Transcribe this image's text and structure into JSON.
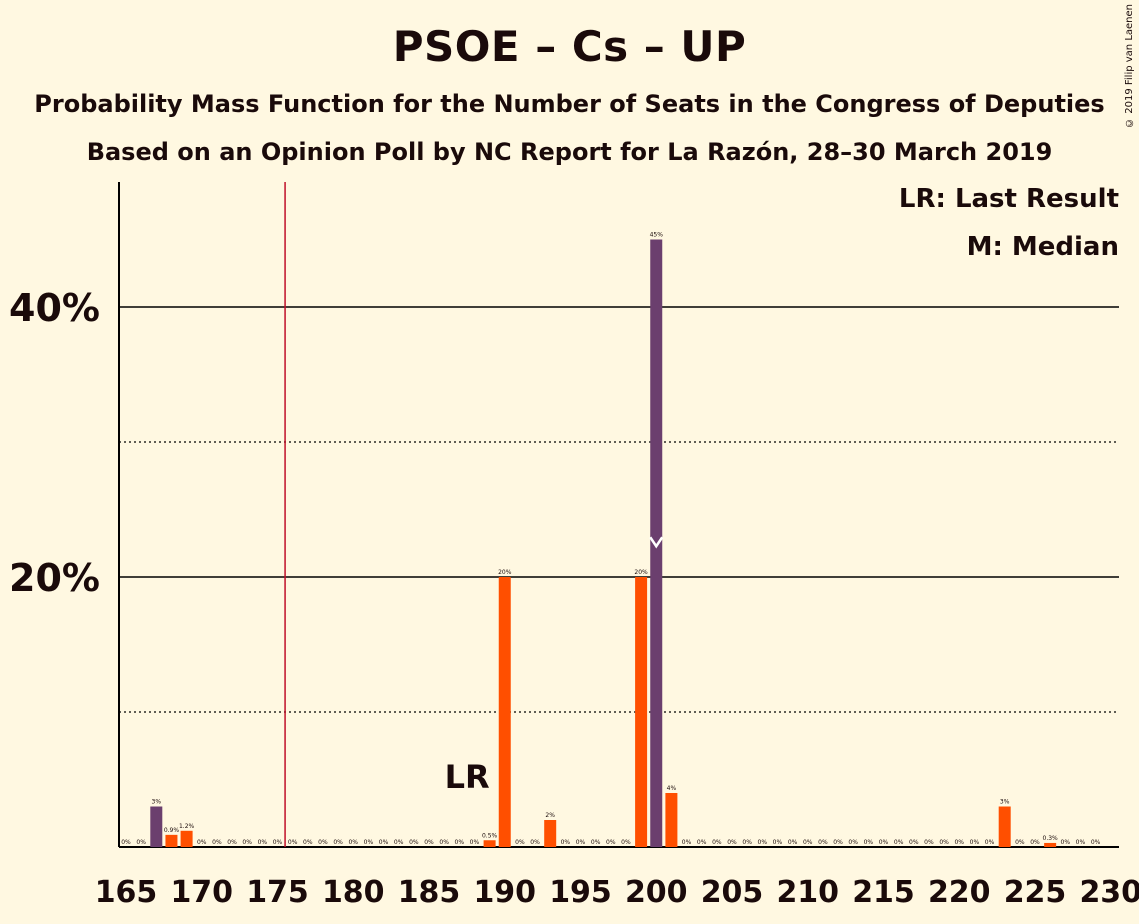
{
  "title": "PSOE – Cs – UP",
  "subtitle1": "Probability Mass Function for the Number of Seats in the Congress of Deputies",
  "subtitle2": "Based on an Opinion Poll by NC Report for La Razón, 28–30 March 2019",
  "copyright": "© 2019 Filip van Laenen",
  "legend": {
    "last_result": "LR: Last Result",
    "median": "M: Median"
  },
  "colors": {
    "median_bar": "#6B3F6E",
    "bar": "#FF4F00",
    "majority_line": "#C0102A",
    "background": "#FFF8E1"
  },
  "chart_data": {
    "type": "bar",
    "xlabel": "",
    "ylabel": "",
    "xlim": [
      165,
      230
    ],
    "ylim": [
      0,
      49
    ],
    "y_major_ticks": [
      20,
      40
    ],
    "y_major_tick_labels": [
      "20%",
      "40%"
    ],
    "y_minor_gridlines": [
      10,
      30
    ],
    "x_tick_labels": [
      "165",
      "170",
      "175",
      "180",
      "185",
      "190",
      "195",
      "200",
      "205",
      "210",
      "215",
      "220",
      "225",
      "230"
    ],
    "majority_line_x": 176,
    "last_result": {
      "x": 189,
      "label": "LR"
    },
    "median": {
      "x": 200,
      "label": "M"
    },
    "bars": [
      {
        "x": 165,
        "value": 0,
        "label": "0%",
        "highlight": false
      },
      {
        "x": 166,
        "value": 0,
        "label": "0%",
        "highlight": false
      },
      {
        "x": 167,
        "value": 3,
        "label": "3%",
        "highlight": true
      },
      {
        "x": 168,
        "value": 0.9,
        "label": "0.9%",
        "highlight": false
      },
      {
        "x": 169,
        "value": 1.2,
        "label": "1.2%",
        "highlight": false
      },
      {
        "x": 170,
        "value": 0,
        "label": "0%",
        "highlight": false
      },
      {
        "x": 171,
        "value": 0,
        "label": "0%",
        "highlight": false
      },
      {
        "x": 172,
        "value": 0,
        "label": "0%",
        "highlight": false
      },
      {
        "x": 173,
        "value": 0,
        "label": "0%",
        "highlight": false
      },
      {
        "x": 174,
        "value": 0,
        "label": "0%",
        "highlight": false
      },
      {
        "x": 175,
        "value": 0,
        "label": "0%",
        "highlight": false
      },
      {
        "x": 176,
        "value": 0,
        "label": "0%",
        "highlight": false
      },
      {
        "x": 177,
        "value": 0,
        "label": "0%",
        "highlight": false
      },
      {
        "x": 178,
        "value": 0,
        "label": "0%",
        "highlight": false
      },
      {
        "x": 179,
        "value": 0,
        "label": "0%",
        "highlight": false
      },
      {
        "x": 180,
        "value": 0,
        "label": "0%",
        "highlight": false
      },
      {
        "x": 181,
        "value": 0,
        "label": "0%",
        "highlight": false
      },
      {
        "x": 182,
        "value": 0,
        "label": "0%",
        "highlight": false
      },
      {
        "x": 183,
        "value": 0,
        "label": "0%",
        "highlight": false
      },
      {
        "x": 184,
        "value": 0,
        "label": "0%",
        "highlight": false
      },
      {
        "x": 185,
        "value": 0,
        "label": "0%",
        "highlight": false
      },
      {
        "x": 186,
        "value": 0,
        "label": "0%",
        "highlight": false
      },
      {
        "x": 187,
        "value": 0,
        "label": "0%",
        "highlight": false
      },
      {
        "x": 188,
        "value": 0,
        "label": "0%",
        "highlight": false
      },
      {
        "x": 189,
        "value": 0.5,
        "label": "0.5%",
        "highlight": false
      },
      {
        "x": 190,
        "value": 20,
        "label": "20%",
        "highlight": false
      },
      {
        "x": 191,
        "value": 0,
        "label": "0%",
        "highlight": false
      },
      {
        "x": 192,
        "value": 0,
        "label": "0%",
        "highlight": false
      },
      {
        "x": 193,
        "value": 2,
        "label": "2%",
        "highlight": false
      },
      {
        "x": 194,
        "value": 0,
        "label": "0%",
        "highlight": false
      },
      {
        "x": 195,
        "value": 0,
        "label": "0%",
        "highlight": false
      },
      {
        "x": 196,
        "value": 0,
        "label": "0%",
        "highlight": false
      },
      {
        "x": 197,
        "value": 0,
        "label": "0%",
        "highlight": false
      },
      {
        "x": 198,
        "value": 0,
        "label": "0%",
        "highlight": false
      },
      {
        "x": 199,
        "value": 20,
        "label": "20%",
        "highlight": false
      },
      {
        "x": 200,
        "value": 45,
        "label": "45%",
        "highlight": true
      },
      {
        "x": 201,
        "value": 4,
        "label": "4%",
        "highlight": false
      },
      {
        "x": 202,
        "value": 0,
        "label": "0%",
        "highlight": false
      },
      {
        "x": 203,
        "value": 0,
        "label": "0%",
        "highlight": false
      },
      {
        "x": 204,
        "value": 0,
        "label": "0%",
        "highlight": false
      },
      {
        "x": 205,
        "value": 0,
        "label": "0%",
        "highlight": false
      },
      {
        "x": 206,
        "value": 0,
        "label": "0%",
        "highlight": false
      },
      {
        "x": 207,
        "value": 0,
        "label": "0%",
        "highlight": false
      },
      {
        "x": 208,
        "value": 0,
        "label": "0%",
        "highlight": false
      },
      {
        "x": 209,
        "value": 0,
        "label": "0%",
        "highlight": false
      },
      {
        "x": 210,
        "value": 0,
        "label": "0%",
        "highlight": false
      },
      {
        "x": 211,
        "value": 0,
        "label": "0%",
        "highlight": false
      },
      {
        "x": 212,
        "value": 0,
        "label": "0%",
        "highlight": false
      },
      {
        "x": 213,
        "value": 0,
        "label": "0%",
        "highlight": false
      },
      {
        "x": 214,
        "value": 0,
        "label": "0%",
        "highlight": false
      },
      {
        "x": 215,
        "value": 0,
        "label": "0%",
        "highlight": false
      },
      {
        "x": 216,
        "value": 0,
        "label": "0%",
        "highlight": false
      },
      {
        "x": 217,
        "value": 0,
        "label": "0%",
        "highlight": false
      },
      {
        "x": 218,
        "value": 0,
        "label": "0%",
        "highlight": false
      },
      {
        "x": 219,
        "value": 0,
        "label": "0%",
        "highlight": false
      },
      {
        "x": 220,
        "value": 0,
        "label": "0%",
        "highlight": false
      },
      {
        "x": 221,
        "value": 0,
        "label": "0%",
        "highlight": false
      },
      {
        "x": 222,
        "value": 0,
        "label": "0%",
        "highlight": false
      },
      {
        "x": 223,
        "value": 3,
        "label": "3%",
        "highlight": false
      },
      {
        "x": 224,
        "value": 0,
        "label": "0%",
        "highlight": false
      },
      {
        "x": 225,
        "value": 0,
        "label": "0%",
        "highlight": false
      },
      {
        "x": 226,
        "value": 0.3,
        "label": "0.3%",
        "highlight": false
      },
      {
        "x": 227,
        "value": 0,
        "label": "0%",
        "highlight": false
      },
      {
        "x": 228,
        "value": 0,
        "label": "0%",
        "highlight": false
      },
      {
        "x": 229,
        "value": 0,
        "label": "0%",
        "highlight": false
      }
    ]
  }
}
